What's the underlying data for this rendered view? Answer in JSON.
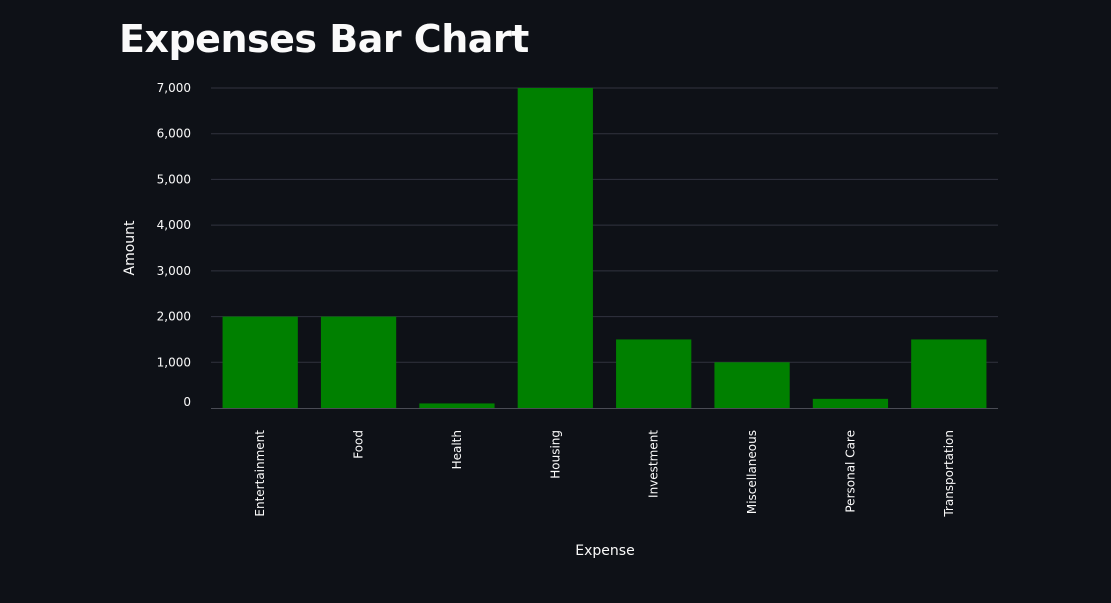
{
  "page": {
    "title": "Expenses Bar Chart"
  },
  "colors": {
    "background": "#0e1117",
    "bar": "#008000",
    "grid": "#31333f",
    "text": "#fafafa"
  },
  "chart_data": {
    "type": "bar",
    "title": "Expenses Bar Chart",
    "xlabel": "Expense",
    "ylabel": "Amount",
    "categories": [
      "Entertainment",
      "Food",
      "Health",
      "Housing",
      "Investment",
      "Miscellaneous",
      "Personal Care",
      "Transportation"
    ],
    "values": [
      2000,
      2000,
      100,
      7000,
      1500,
      1000,
      200,
      1500
    ],
    "ylim": [
      0,
      7000
    ],
    "yticks": [
      0,
      1000,
      2000,
      3000,
      4000,
      5000,
      6000,
      7000
    ],
    "ytick_labels": [
      "0",
      "1,000",
      "2,000",
      "3,000",
      "4,000",
      "5,000",
      "6,000",
      "7,000"
    ],
    "grid": true,
    "legend": "none"
  }
}
